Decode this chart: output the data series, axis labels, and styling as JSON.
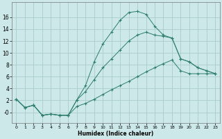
{
  "xlabel": "Humidex (Indice chaleur)",
  "bg_color": "#cce8e8",
  "line_color": "#2d7d6e",
  "grid_color": "#aacccc",
  "xlim": [
    -0.5,
    23.5
  ],
  "ylim": [
    -1.8,
    18.5
  ],
  "xticks": [
    0,
    1,
    2,
    3,
    4,
    5,
    6,
    7,
    8,
    9,
    10,
    11,
    12,
    13,
    14,
    15,
    16,
    17,
    18,
    19,
    20,
    21,
    22,
    23
  ],
  "yticks": [
    0,
    2,
    4,
    6,
    8,
    10,
    12,
    14,
    16
  ],
  "ytick_labels": [
    "-0",
    "2",
    "4",
    "6",
    "8",
    "10",
    "12",
    "14",
    "16"
  ],
  "line1_x": [
    0,
    1,
    2,
    3,
    4,
    5,
    6,
    7,
    8,
    9,
    10,
    11,
    12,
    13,
    14,
    15,
    16,
    17,
    18,
    19,
    20,
    21,
    22,
    23
  ],
  "line1_y": [
    2.2,
    0.8,
    1.2,
    -0.5,
    -0.3,
    -0.5,
    -0.5,
    2.1,
    4.5,
    8.5,
    11.5,
    13.5,
    15.5,
    16.8,
    17.0,
    16.5,
    14.5,
    13.0,
    12.5,
    9.0,
    8.5,
    7.5,
    7.0,
    6.5
  ],
  "line2_x": [
    0,
    1,
    2,
    3,
    4,
    5,
    6,
    7,
    8,
    9,
    10,
    11,
    12,
    13,
    14,
    15,
    16,
    17,
    18,
    19,
    20,
    21,
    22,
    23
  ],
  "line2_y": [
    2.2,
    0.8,
    1.2,
    -0.5,
    -0.3,
    -0.5,
    -0.5,
    2.1,
    3.5,
    5.5,
    7.5,
    9.0,
    10.5,
    12.0,
    13.0,
    13.5,
    13.0,
    12.8,
    12.5,
    9.0,
    8.5,
    7.5,
    7.0,
    6.5
  ],
  "line3_x": [
    0,
    1,
    2,
    3,
    4,
    5,
    6,
    7,
    8,
    9,
    10,
    11,
    12,
    13,
    14,
    15,
    16,
    17,
    18,
    19,
    20,
    21,
    22,
    23
  ],
  "line3_y": [
    2.2,
    0.8,
    1.2,
    -0.5,
    -0.3,
    -0.5,
    -0.5,
    1.0,
    1.5,
    2.2,
    3.0,
    3.8,
    4.5,
    5.2,
    6.0,
    6.8,
    7.5,
    8.2,
    8.8,
    7.0,
    6.5,
    6.5,
    6.5,
    6.5
  ]
}
